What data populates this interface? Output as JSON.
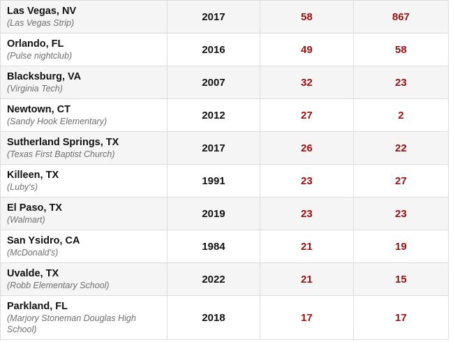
{
  "accent_color": "#a10e0e",
  "rows": [
    {
      "city": "Las Vegas, NV",
      "venue": "(Las Vegas Strip)",
      "year": "2017",
      "killed": "58",
      "injured": "867"
    },
    {
      "city": "Orlando, FL",
      "venue": "(Pulse nightclub)",
      "year": "2016",
      "killed": "49",
      "injured": "58"
    },
    {
      "city": "Blacksburg, VA",
      "venue": "(Virginia Tech)",
      "year": "2007",
      "killed": "32",
      "injured": "23"
    },
    {
      "city": "Newtown, CT",
      "venue": "(Sandy Hook Elementary)",
      "year": "2012",
      "killed": "27",
      "injured": "2"
    },
    {
      "city": "Sutherland Springs, TX",
      "venue": "(Texas First Baptist Church)",
      "year": "2017",
      "killed": "26",
      "injured": "22"
    },
    {
      "city": "Killeen, TX",
      "venue": "(Luby's)",
      "year": "1991",
      "killed": "23",
      "injured": "27"
    },
    {
      "city": "El Paso, TX",
      "venue": "(Walmart)",
      "year": "2019",
      "killed": "23",
      "injured": "23"
    },
    {
      "city": "San Ysidro, CA",
      "venue": "(McDonald's)",
      "year": "1984",
      "killed": "21",
      "injured": "19"
    },
    {
      "city": "Uvalde, TX",
      "venue": "(Robb Elementary School)",
      "year": "2022",
      "killed": "21",
      "injured": "15"
    },
    {
      "city": "Parkland, FL",
      "venue": "(Marjory Stoneman Douglas High School)",
      "year": "2018",
      "killed": "17",
      "injured": "17"
    }
  ]
}
